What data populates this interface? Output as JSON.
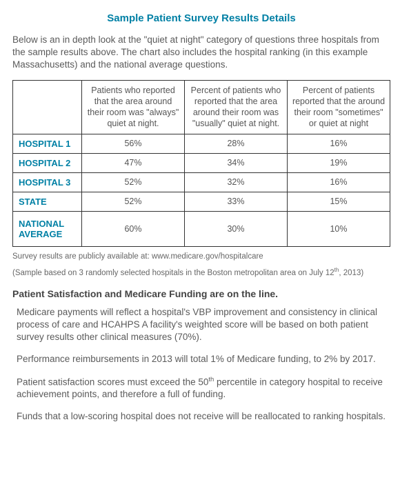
{
  "title": "Sample Patient Survey Results Details",
  "intro": "Below is an in depth look at the \"quiet at night\" category of questions three hospitals from the sample results above. The chart also includes the hospital ranking (in this example Massachusetts) and the national average questions.",
  "table": {
    "columns": [
      "",
      "Patients who reported that the area around their room was \"always\" quiet at night.",
      "Percent of patients who reported that the area around their room was \"usually\" quiet at night.",
      "Percent of patients reported that the around their room \"sometimes\" or quiet at night"
    ],
    "rows": [
      {
        "label": "HOSPITAL 1",
        "values": [
          "56%",
          "28%",
          "16%"
        ]
      },
      {
        "label": "HOSPITAL 2",
        "values": [
          "47%",
          "34%",
          "19%"
        ]
      },
      {
        "label": "HOSPITAL 3",
        "values": [
          "52%",
          "32%",
          "16%"
        ]
      },
      {
        "label": "STATE",
        "values": [
          "52%",
          "33%",
          "15%"
        ]
      },
      {
        "label": "NATIONAL AVERAGE",
        "values": [
          "60%",
          "30%",
          "10%"
        ],
        "tall": true
      }
    ],
    "col_widths": [
      "100px",
      "auto",
      "auto",
      "auto"
    ],
    "border_color": "#333333",
    "label_color": "#0080a5"
  },
  "footnote1": "Survey results are publicly available at: www.medicare.gov/hospitalcare",
  "footnote2_pre": "(Sample based on 3 randomly selected hospitals in the Boston metropolitan area on July 12",
  "footnote2_sup": "th",
  "footnote2_post": ", 2013)",
  "subhead": "Patient Satisfaction and Medicare Funding are on the line.",
  "paragraphs": [
    "Medicare payments will reflect a hospital's VBP improvement and consistency in clinical process of care and HCAHPS A facility's weighted score will be based on both patient survey results other clinical measures (70%).",
    "Performance reimbursements in 2013 will total 1% of Medicare funding, to 2% by 2017.",
    "",
    "Funds that a low-scoring hospital does not receive will be reallocated to ranking hospitals."
  ],
  "para3_pre": "Patient satisfaction scores must exceed the 50",
  "para3_sup": "th",
  "para3_post": " percentile in  category hospital to receive achievement points, and therefore a full of funding.",
  "colors": {
    "accent": "#0080a5",
    "text": "#555555",
    "background": "#ffffff"
  }
}
